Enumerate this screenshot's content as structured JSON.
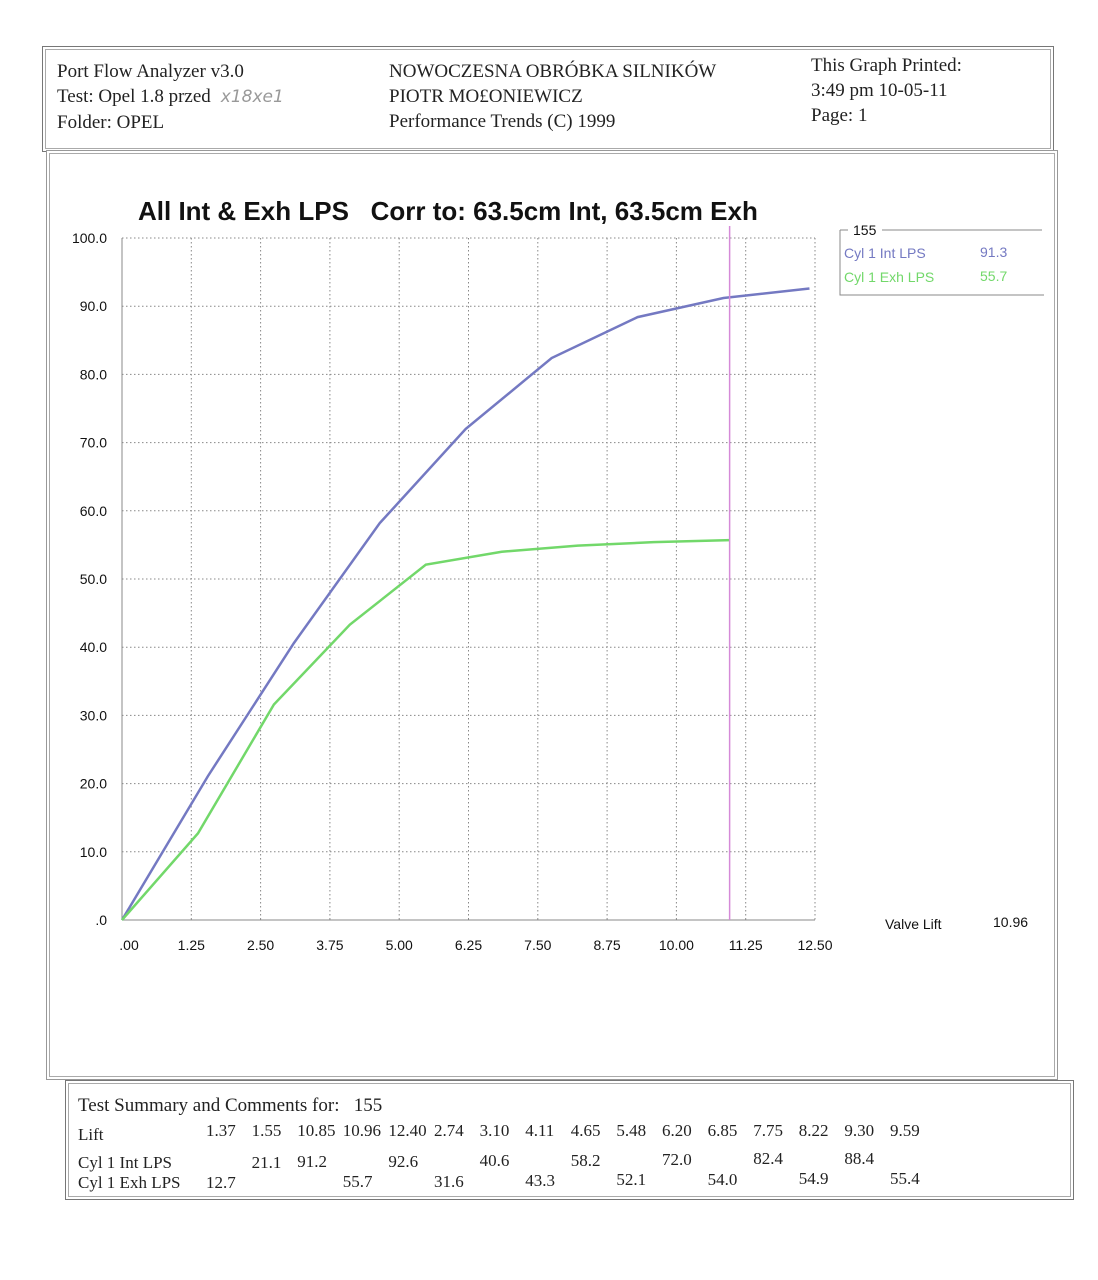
{
  "header": {
    "app": "Port Flow Analyzer v3.0",
    "test": "Test: Opel 1.8 przed",
    "handwritten_note": "x18xe1",
    "folder": "Folder: OPEL",
    "company": "NOWOCZESNA OBRÓBKA SILNIKÓW",
    "owner": "PIOTR MO£ONIEWICZ",
    "copyright": "Performance Trends (C) 1999",
    "printed_label": "This Graph Printed:",
    "printed_time": "3:49 pm 10-05-11",
    "page": "Page: 1"
  },
  "chart_data": {
    "type": "line",
    "title": "All Int & Exh LPS   Corr to: 63.5cm Int, 63.5cm Exh",
    "xlim": [
      0,
      12.5
    ],
    "ylim": [
      0,
      100
    ],
    "x_ticks": [
      ".00",
      "1.25",
      "2.50",
      "3.75",
      "5.00",
      "6.25",
      "7.50",
      "8.75",
      "10.00",
      "11.25",
      "12.50"
    ],
    "y_ticks": [
      ".0",
      "10.0",
      "20.0",
      "30.0",
      "40.0",
      "50.0",
      "60.0",
      "70.0",
      "80.0",
      "90.0",
      "100.0"
    ],
    "grid": true,
    "legend_placement": "right",
    "legend_title": "155",
    "series": [
      {
        "name": "Cyl 1 Int LPS",
        "color": "#7479c2",
        "cursor_value": "91.3",
        "points": [
          [
            0,
            0
          ],
          [
            1.55,
            21.1
          ],
          [
            3.1,
            40.6
          ],
          [
            4.65,
            58.2
          ],
          [
            6.2,
            72.0
          ],
          [
            7.75,
            82.4
          ],
          [
            9.3,
            88.4
          ],
          [
            10.85,
            91.2
          ],
          [
            12.4,
            92.6
          ]
        ]
      },
      {
        "name": "Cyl 1 Exh LPS",
        "color": "#72d86a",
        "cursor_value": "55.7",
        "points": [
          [
            0,
            0
          ],
          [
            1.37,
            12.7
          ],
          [
            2.74,
            31.6
          ],
          [
            4.11,
            43.3
          ],
          [
            5.48,
            52.1
          ],
          [
            6.85,
            54.0
          ],
          [
            8.22,
            54.9
          ],
          [
            9.59,
            55.4
          ],
          [
            10.96,
            55.7
          ]
        ]
      }
    ],
    "cursor": {
      "label": "Valve Lift",
      "value": 10.96,
      "value_text": "10.96",
      "color": "#d58ad8"
    }
  },
  "summary": {
    "title": "Test Summary and Comments for:",
    "test_id": "155",
    "rows": [
      {
        "label": "Lift",
        "cells": [
          "1.37",
          "1.55",
          "10.85",
          "10.96",
          "12.40",
          "2.74",
          "3.10",
          "4.11",
          "4.65",
          "5.48",
          "6.20",
          "6.85",
          "7.75",
          "8.22",
          "9.30",
          "9.59"
        ]
      },
      {
        "label": "Cyl 1 Int LPS",
        "cells": [
          "",
          "21.1",
          "91.2",
          "",
          "92.6",
          "",
          "40.6",
          "",
          "58.2",
          "",
          "72.0",
          "",
          "82.4",
          "",
          "88.4",
          ""
        ]
      },
      {
        "label": "Cyl 1 Exh LPS",
        "cells": [
          "12.7",
          "",
          "",
          "55.7",
          "",
          "31.6",
          "",
          "43.3",
          "",
          "52.1",
          "",
          "54.0",
          "",
          "54.9",
          "",
          "55.4"
        ]
      }
    ]
  }
}
